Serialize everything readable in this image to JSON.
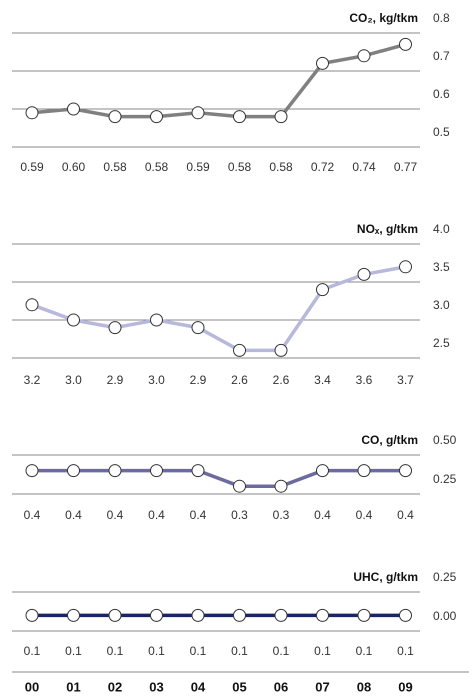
{
  "chart_data": [
    {
      "type": "line",
      "title": "CO₂, kg/tkm",
      "color": "#808080",
      "values": [
        0.59,
        0.6,
        0.58,
        0.58,
        0.59,
        0.58,
        0.58,
        0.72,
        0.74,
        0.77
      ],
      "value_labels": [
        "0.59",
        "0.60",
        "0.58",
        "0.58",
        "0.59",
        "0.58",
        "0.58",
        "0.72",
        "0.74",
        "0.77"
      ],
      "ylim": [
        0.5,
        0.8
      ],
      "yticks": [
        0.8,
        0.7,
        0.6,
        0.5
      ],
      "grid": true
    },
    {
      "type": "line",
      "title": "NOₓ, g/tkm",
      "color": "#b8b8dc",
      "values": [
        3.2,
        3.0,
        2.9,
        3.0,
        2.9,
        2.6,
        2.6,
        3.4,
        3.6,
        3.7
      ],
      "value_labels": [
        "3.2",
        "3.0",
        "2.9",
        "3.0",
        "2.9",
        "2.6",
        "2.6",
        "3.4",
        "3.6",
        "3.7"
      ],
      "ylim": [
        2.5,
        4.0
      ],
      "yticks": [
        {
          "value": 4,
          "label": "4.0"
        },
        3.5,
        {
          "value": 3,
          "label": "3.0"
        },
        2.5
      ],
      "grid": true
    },
    {
      "type": "line",
      "title": "CO, g/tkm",
      "color": "#6b6b9e",
      "values": [
        0.4,
        0.4,
        0.4,
        0.4,
        0.4,
        0.3,
        0.3,
        0.4,
        0.4,
        0.4
      ],
      "ylim": [
        0.25,
        0.5
      ],
      "yticks": [
        {
          "value": 0.5,
          "label": "0.50"
        },
        0.25
      ],
      "grid": true
    },
    {
      "type": "line",
      "title": "UHC, g/tkm",
      "color": "#1a2466",
      "values": [
        0.1,
        0.1,
        0.1,
        0.1,
        0.1,
        0.1,
        0.1,
        0.1,
        0.1,
        0.1
      ],
      "ylim": [
        0,
        0.25
      ],
      "yticks": [
        0.25,
        {
          "value": 0,
          "label": "0.00"
        }
      ],
      "grid": true,
      "categories": [
        "00",
        "01",
        "02",
        "03",
        "04",
        "05",
        "06",
        "07",
        "08",
        "09"
      ]
    }
  ]
}
